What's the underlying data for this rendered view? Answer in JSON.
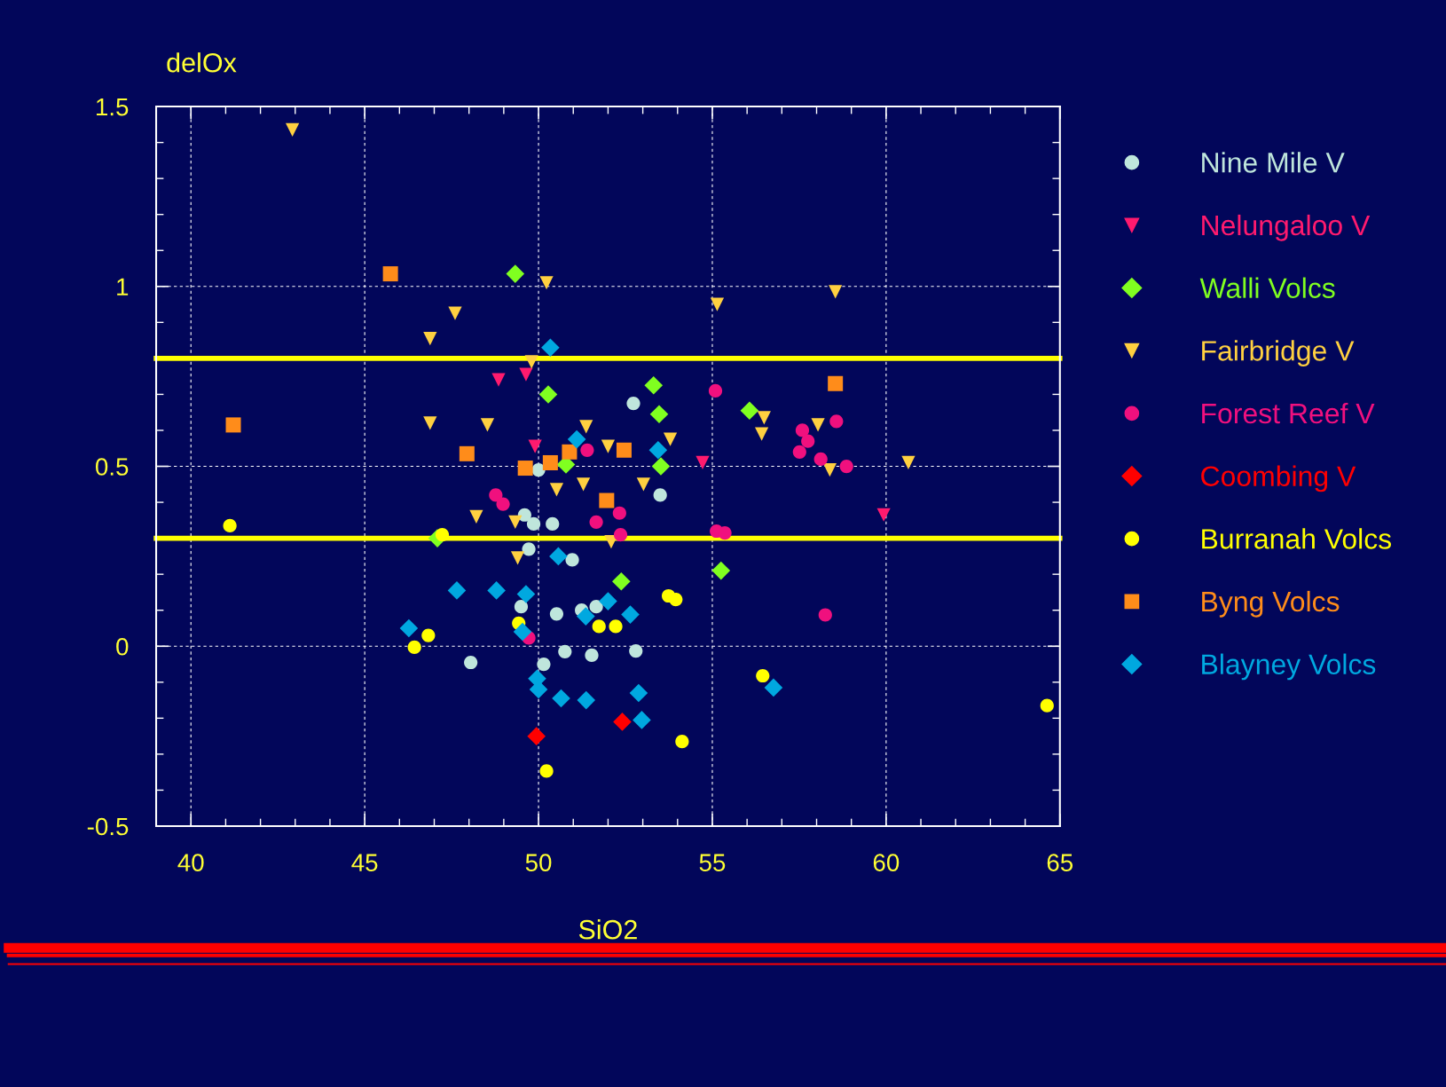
{
  "chart_data": {
    "type": "scatter",
    "xlabel": "SiO2",
    "ylabel": "delOx",
    "xlim": [
      39,
      65
    ],
    "ylim": [
      -0.5,
      1.5
    ],
    "xticks": [
      40,
      45,
      50,
      55,
      60,
      65
    ],
    "yticks": [
      -0.5,
      0,
      0.5,
      1,
      1.5
    ],
    "grid": true,
    "legend": "right",
    "ref_lines": [
      {
        "axis": "y",
        "value": 0.8,
        "color": "#ffff00"
      },
      {
        "axis": "y",
        "value": 0.3,
        "color": "#ffff00"
      }
    ],
    "series": [
      {
        "name": "Nine Mile V",
        "color": "#bfe6dc",
        "marker": "circle",
        "x": [
          52.73,
          53.5,
          50.0,
          49.6,
          49.86,
          50.4,
          49.72,
          50.97,
          49.5,
          50.52,
          51.24,
          51.66,
          48.05,
          50.15,
          50.76,
          51.53,
          52.8
        ],
        "values": [
          0.675,
          0.42,
          0.49,
          0.365,
          0.34,
          0.34,
          0.27,
          0.24,
          0.11,
          0.09,
          0.1,
          0.11,
          -0.045,
          -0.05,
          -0.015,
          -0.025,
          -0.013
        ]
      },
      {
        "name": "Nelungaloo V",
        "color": "#ff1a6e",
        "marker": "triangle",
        "x": [
          48.85,
          49.64,
          49.9,
          54.72,
          59.93
        ],
        "values": [
          0.74,
          0.755,
          0.555,
          0.51,
          0.365
        ]
      },
      {
        "name": "Walli Volcs",
        "color": "#80ff20",
        "marker": "diamond",
        "x": [
          49.33,
          50.28,
          53.31,
          53.47,
          53.52,
          50.79,
          56.07,
          52.38,
          55.25,
          47.09
        ],
        "values": [
          1.035,
          0.7,
          0.725,
          0.645,
          0.5,
          0.505,
          0.655,
          0.18,
          0.21,
          0.3
        ]
      },
      {
        "name": "Fairbridge V",
        "color": "#ffd040",
        "marker": "triangle",
        "x": [
          42.92,
          50.23,
          55.14,
          58.54,
          47.6,
          46.88,
          49.8,
          46.88,
          48.53,
          51.37,
          52.0,
          50.52,
          51.29,
          53.79,
          53.02,
          56.49,
          56.42,
          58.04,
          58.38,
          60.64,
          48.21,
          49.33,
          49.4,
          52.09
        ],
        "values": [
          1.435,
          1.01,
          0.95,
          0.985,
          0.925,
          0.855,
          0.79,
          0.62,
          0.615,
          0.61,
          0.555,
          0.435,
          0.45,
          0.575,
          0.45,
          0.635,
          0.59,
          0.615,
          0.49,
          0.51,
          0.36,
          0.345,
          0.245,
          0.29
        ]
      },
      {
        "name": "Forest Reef V",
        "color": "#f0107e",
        "marker": "circle",
        "x": [
          55.09,
          51.4,
          48.77,
          48.98,
          57.59,
          57.75,
          57.51,
          58.12,
          58.86,
          58.57,
          52.33,
          51.66,
          52.36,
          55.12,
          55.36,
          58.25,
          49.72
        ],
        "values": [
          0.71,
          0.545,
          0.42,
          0.395,
          0.6,
          0.57,
          0.54,
          0.52,
          0.5,
          0.625,
          0.37,
          0.345,
          0.31,
          0.32,
          0.315,
          0.087,
          0.023
        ]
      },
      {
        "name": "Coombing V",
        "color": "#ff0000",
        "marker": "diamond",
        "x": [
          49.94,
          52.41
        ],
        "values": [
          -0.25,
          -0.21
        ]
      },
      {
        "name": "Burranah Volcs",
        "color": "#ffff00",
        "marker": "circle",
        "x": [
          41.12,
          47.23,
          46.83,
          46.43,
          49.43,
          51.74,
          52.22,
          53.74,
          53.95,
          56.45,
          54.13,
          50.23,
          64.63
        ],
        "values": [
          0.335,
          0.31,
          0.03,
          -0.003,
          0.064,
          0.055,
          0.055,
          0.14,
          0.13,
          -0.082,
          -0.265,
          -0.347,
          -0.165
        ]
      },
      {
        "name": "Byng Volcs",
        "color": "#ff8c1a",
        "marker": "square",
        "x": [
          45.74,
          41.22,
          47.94,
          49.62,
          50.34,
          50.89,
          52.46,
          51.96,
          58.54
        ],
        "values": [
          1.035,
          0.615,
          0.535,
          0.495,
          0.51,
          0.54,
          0.545,
          0.405,
          0.73
        ]
      },
      {
        "name": "Blayney Volcs",
        "color": "#00a8e0",
        "marker": "diamond",
        "x": [
          50.34,
          51.1,
          53.44,
          50.57,
          47.65,
          48.79,
          49.64,
          52.0,
          52.64,
          51.36,
          46.27,
          49.54,
          49.96,
          50.0,
          50.65,
          51.37,
          52.88,
          52.97,
          56.76
        ],
        "values": [
          0.83,
          0.575,
          0.545,
          0.25,
          0.155,
          0.155,
          0.145,
          0.125,
          0.088,
          0.083,
          0.05,
          0.04,
          -0.09,
          -0.12,
          -0.145,
          -0.15,
          -0.13,
          -0.205,
          -0.115
        ]
      }
    ]
  }
}
